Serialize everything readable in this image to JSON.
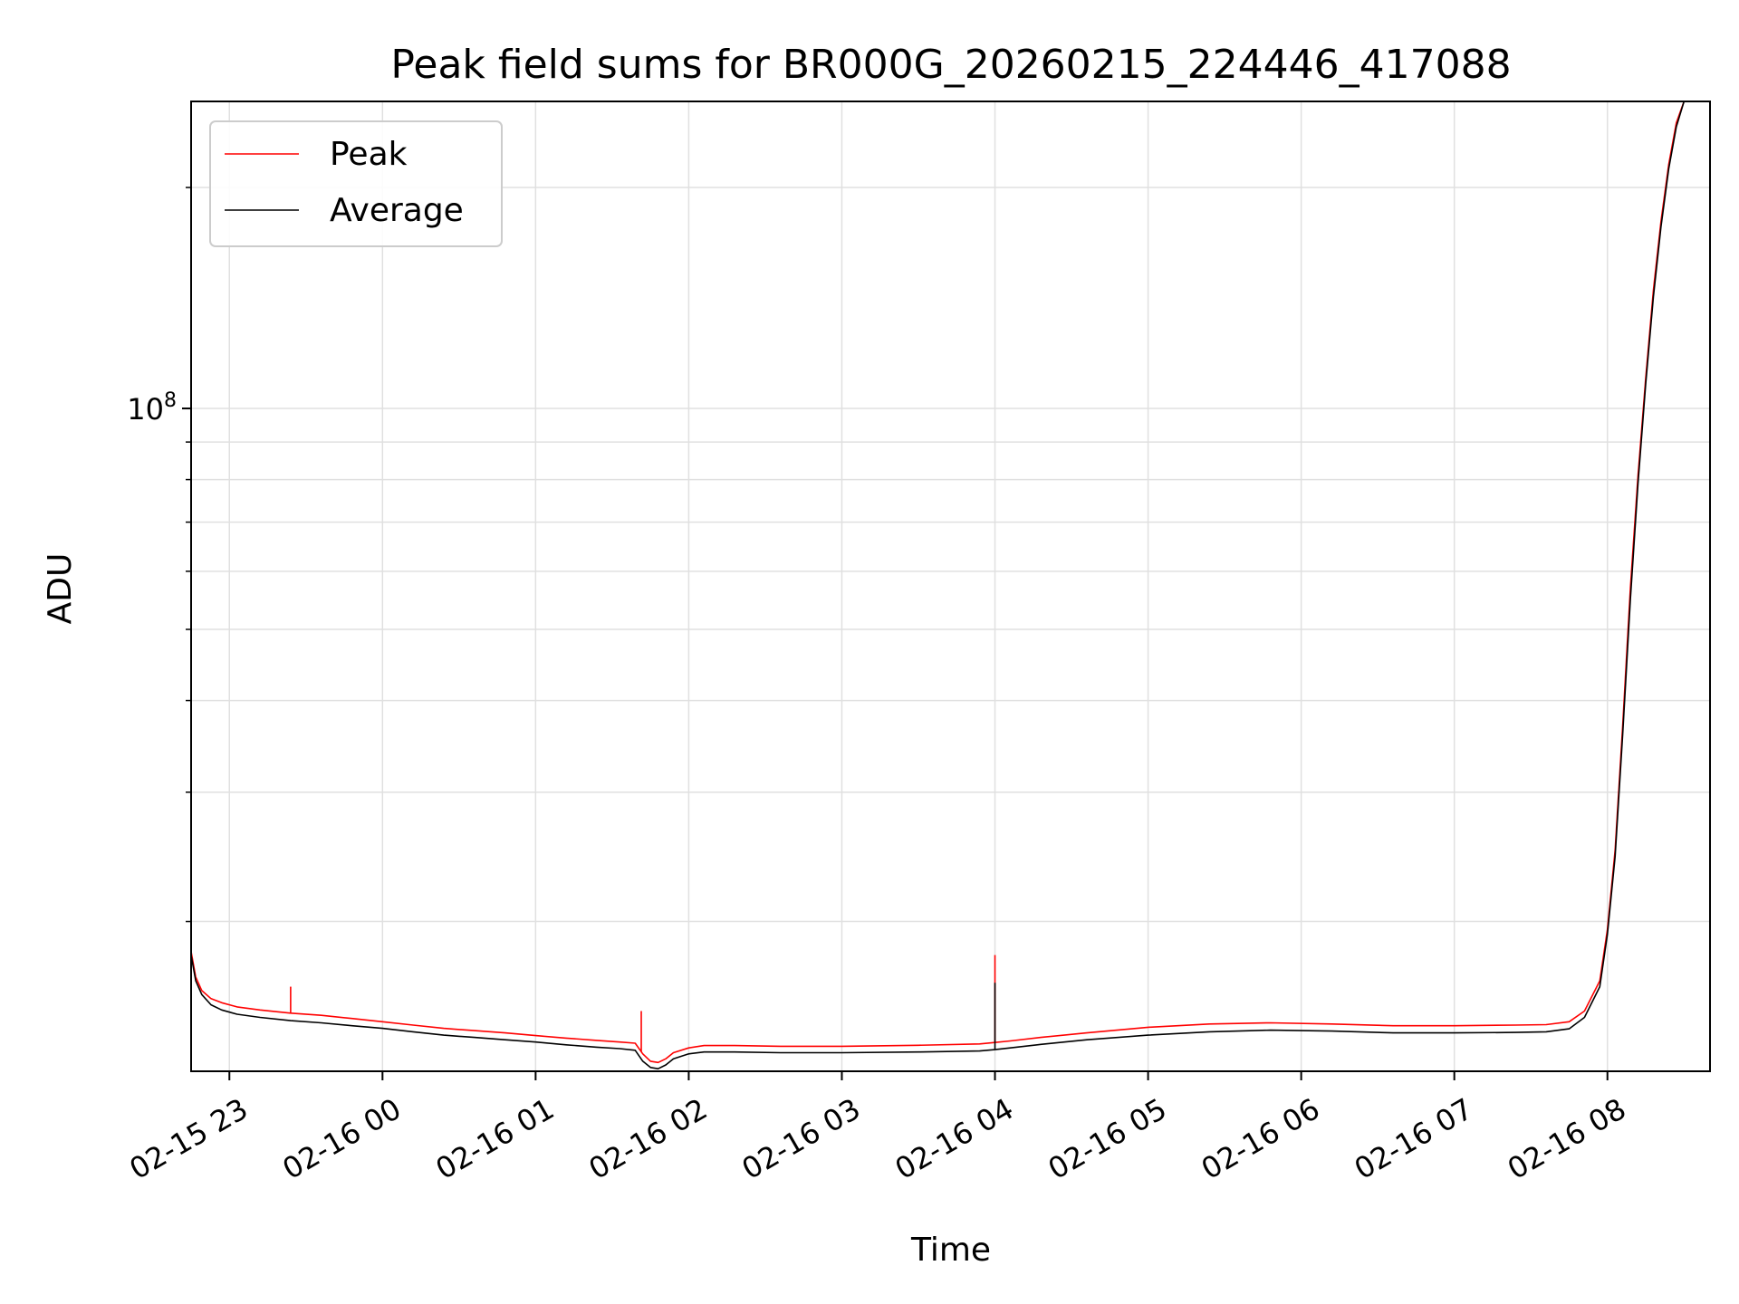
{
  "chart_data": {
    "type": "line",
    "title": "Peak field sums for BR000G_20260215_224446_417088",
    "xlabel": "Time",
    "ylabel": "ADU",
    "yscale": "log",
    "grid": true,
    "legend_position": "top-left",
    "x_unit": "hours since 2026-02-15 22:00",
    "xlim": [
      0.75,
      10.67
    ],
    "ylim": [
      12500000,
      262000000
    ],
    "x_ticks": [
      {
        "value": 1,
        "label": "02-15 23"
      },
      {
        "value": 2,
        "label": "02-16 00"
      },
      {
        "value": 3,
        "label": "02-16 01"
      },
      {
        "value": 4,
        "label": "02-16 02"
      },
      {
        "value": 5,
        "label": "02-16 03"
      },
      {
        "value": 6,
        "label": "02-16 04"
      },
      {
        "value": 7,
        "label": "02-16 05"
      },
      {
        "value": 8,
        "label": "02-16 06"
      },
      {
        "value": 9,
        "label": "02-16 07"
      },
      {
        "value": 10,
        "label": "02-16 08"
      }
    ],
    "y_major_ticks": [
      {
        "value": 100000000,
        "label_base": "10",
        "label_exp": "8"
      }
    ],
    "y_minor_ticks": [
      20000000,
      30000000,
      40000000,
      50000000,
      60000000,
      70000000,
      80000000,
      90000000,
      200000000
    ],
    "series": [
      {
        "name": "Peak",
        "color": "#ff0000",
        "x": [
          0.75,
          0.78,
          0.82,
          0.88,
          0.95,
          1.05,
          1.2,
          1.4,
          1.6,
          1.8,
          2.0,
          2.2,
          2.4,
          2.6,
          2.8,
          3.0,
          3.2,
          3.4,
          3.55,
          3.65,
          3.7,
          3.75,
          3.8,
          3.85,
          3.9,
          4.0,
          4.1,
          4.3,
          4.6,
          5.0,
          5.5,
          5.9,
          6.0,
          6.1,
          6.3,
          6.6,
          7.0,
          7.4,
          7.8,
          8.2,
          8.6,
          9.0,
          9.4,
          9.6,
          9.75,
          9.85,
          9.95,
          10.0,
          10.05,
          10.1,
          10.15,
          10.2,
          10.25,
          10.3,
          10.35,
          10.4,
          10.45,
          10.5,
          10.55,
          10.6
        ],
        "y": [
          18200000,
          16800000,
          16100000,
          15700000,
          15500000,
          15300000,
          15150000,
          15000000,
          14900000,
          14750000,
          14600000,
          14450000,
          14300000,
          14200000,
          14100000,
          13980000,
          13870000,
          13770000,
          13700000,
          13650000,
          13200000,
          12900000,
          12850000,
          13000000,
          13250000,
          13450000,
          13550000,
          13550000,
          13520000,
          13520000,
          13560000,
          13620000,
          13680000,
          13750000,
          13900000,
          14100000,
          14350000,
          14500000,
          14550000,
          14500000,
          14420000,
          14420000,
          14450000,
          14470000,
          14600000,
          15100000,
          16600000,
          19500000,
          25000000,
          37000000,
          57000000,
          81000000,
          110000000,
          145000000,
          180000000,
          215000000,
          245000000,
          262000000,
          262000000,
          262000000
        ]
      },
      {
        "name": "Average",
        "color": "#000000",
        "x": [
          0.75,
          0.78,
          0.82,
          0.88,
          0.95,
          1.05,
          1.2,
          1.4,
          1.6,
          1.8,
          2.0,
          2.2,
          2.4,
          2.6,
          2.8,
          3.0,
          3.2,
          3.4,
          3.55,
          3.65,
          3.7,
          3.75,
          3.8,
          3.85,
          3.9,
          4.0,
          4.1,
          4.3,
          4.6,
          5.0,
          5.5,
          5.9,
          6.0,
          6.1,
          6.3,
          6.6,
          7.0,
          7.4,
          7.8,
          8.2,
          8.6,
          9.0,
          9.4,
          9.6,
          9.75,
          9.85,
          9.95,
          10.0,
          10.05,
          10.1,
          10.15,
          10.2,
          10.25,
          10.3,
          10.35,
          10.4,
          10.45,
          10.5,
          10.55,
          10.6
        ],
        "y": [
          18000000,
          16600000,
          15900000,
          15400000,
          15150000,
          14950000,
          14800000,
          14650000,
          14550000,
          14420000,
          14300000,
          14150000,
          14000000,
          13900000,
          13800000,
          13700000,
          13580000,
          13480000,
          13420000,
          13350000,
          12900000,
          12650000,
          12600000,
          12750000,
          13000000,
          13200000,
          13280000,
          13280000,
          13250000,
          13250000,
          13280000,
          13320000,
          13380000,
          13450000,
          13600000,
          13800000,
          14000000,
          14150000,
          14220000,
          14180000,
          14100000,
          14100000,
          14120000,
          14150000,
          14280000,
          14800000,
          16300000,
          19200000,
          24500000,
          36000000,
          55000000,
          79000000,
          108000000,
          142000000,
          177000000,
          212000000,
          242000000,
          262000000,
          262000000,
          262000000
        ]
      }
    ],
    "spikes": [
      {
        "x": 1.4,
        "y": 16300000,
        "series": "Peak"
      },
      {
        "x": 3.69,
        "y": 15100000,
        "series": "Peak"
      },
      {
        "x": 6.0,
        "y": 18000000,
        "series": "Peak"
      },
      {
        "x": 6.0,
        "y": 16500000,
        "series": "Average"
      }
    ]
  }
}
